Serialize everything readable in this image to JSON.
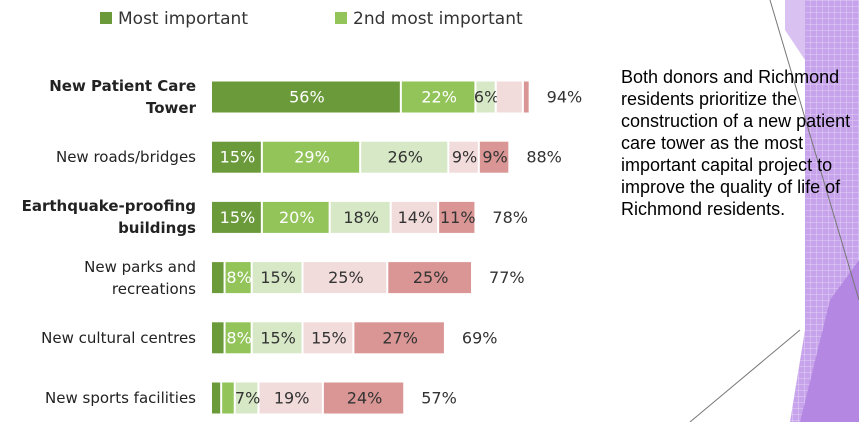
{
  "chart_data": {
    "type": "stacked-bar-horizontal",
    "categories": [
      "New Patient Care Tower",
      "New roads/bridges",
      "Earthquake-proofing buildings",
      "New parks and recreations",
      "New cultural centres",
      "New sports facilities"
    ],
    "series": [
      {
        "name": "Most important",
        "color": "#6b9a3a",
        "values": [
          56,
          15,
          15,
          4,
          4,
          3
        ],
        "value_labels": [
          "56%",
          "15%",
          "15%",
          null,
          null,
          null
        ]
      },
      {
        "name": "2nd most important",
        "color": "#92c45a",
        "values": [
          22,
          29,
          20,
          8,
          8,
          4
        ],
        "value_labels": [
          "22%",
          "29%",
          "20%",
          "8%",
          "8%",
          null
        ]
      },
      {
        "color": "#d7e8c6",
        "values": [
          6,
          26,
          18,
          15,
          15,
          7
        ],
        "value_labels": [
          "6%",
          "26%",
          "18%",
          "15%",
          "15%",
          "7%"
        ]
      },
      {
        "color": "#f2dcdb",
        "values": [
          8,
          9,
          14,
          25,
          15,
          19
        ],
        "value_labels": [
          null,
          "9%",
          "14%",
          "25%",
          "15%",
          "19%"
        ]
      },
      {
        "color": "#d99694",
        "values": [
          2,
          9,
          11,
          25,
          27,
          24
        ],
        "value_labels": [
          null,
          "9%",
          "11%",
          "25%",
          "27%",
          "24%"
        ]
      }
    ],
    "totals": [
      94,
      88,
      78,
      77,
      69,
      57
    ],
    "total_labels": [
      "94%",
      "88%",
      "78%",
      "77%",
      "69%",
      "57%"
    ],
    "legend": "top"
  },
  "body_text": "Both donors and Richmond residents prioritize the construction of a new patient care tower as the most important capital project to improve the quality of life of Richmond residents."
}
